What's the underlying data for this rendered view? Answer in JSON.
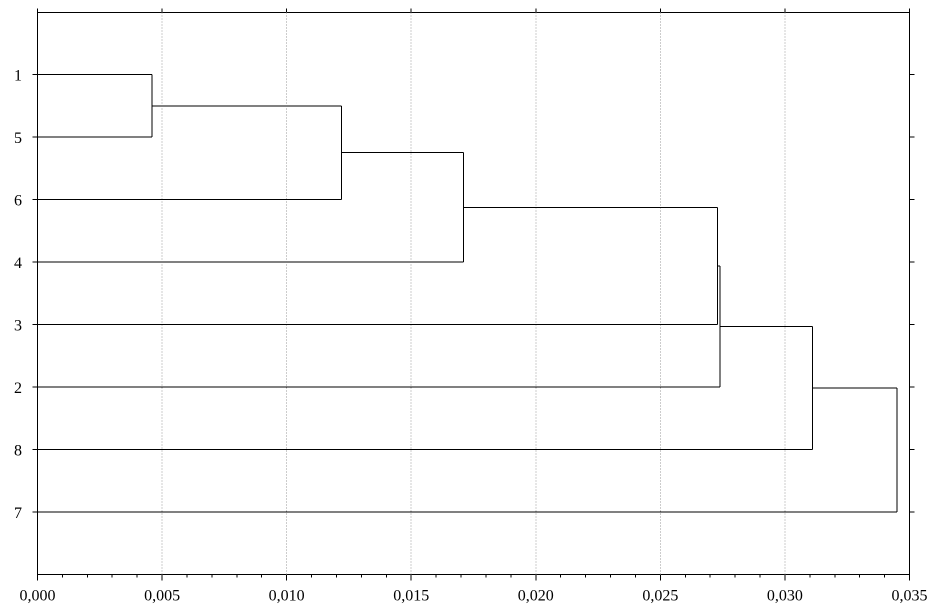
{
  "chart_data": {
    "type": "dendrogram",
    "orientation": "horizontal",
    "leaves": [
      "1",
      "5",
      "6",
      "4",
      "3",
      "2",
      "8",
      "7"
    ],
    "merges": [
      {
        "a": "1",
        "b": "5",
        "distance": 0.0046
      },
      {
        "a": "1-5",
        "b": "6",
        "distance": 0.0122
      },
      {
        "a": "1-5-6",
        "b": "4",
        "distance": 0.0171
      },
      {
        "a": "1-5-6-4",
        "b": "3",
        "distance": 0.0273
      },
      {
        "a": "1-5-6-4-3",
        "b": "2",
        "distance": 0.0274
      },
      {
        "a": "1-5-6-4-3-2",
        "b": "8",
        "distance": 0.0311
      },
      {
        "a": "1-5-6-4-3-2-8",
        "b": "7",
        "distance": 0.0345
      }
    ],
    "x_ticks": [
      "0,000",
      "0,005",
      "0,010",
      "0,015",
      "0,020",
      "0,025",
      "0,030",
      "0,035"
    ],
    "x_tick_values": [
      0,
      0.005,
      0.01,
      0.015,
      0.02,
      0.025,
      0.03,
      0.035
    ],
    "xlim": [
      0,
      0.035
    ],
    "grid": "vertical-dotted",
    "title": "",
    "xlabel": "",
    "ylabel": ""
  }
}
